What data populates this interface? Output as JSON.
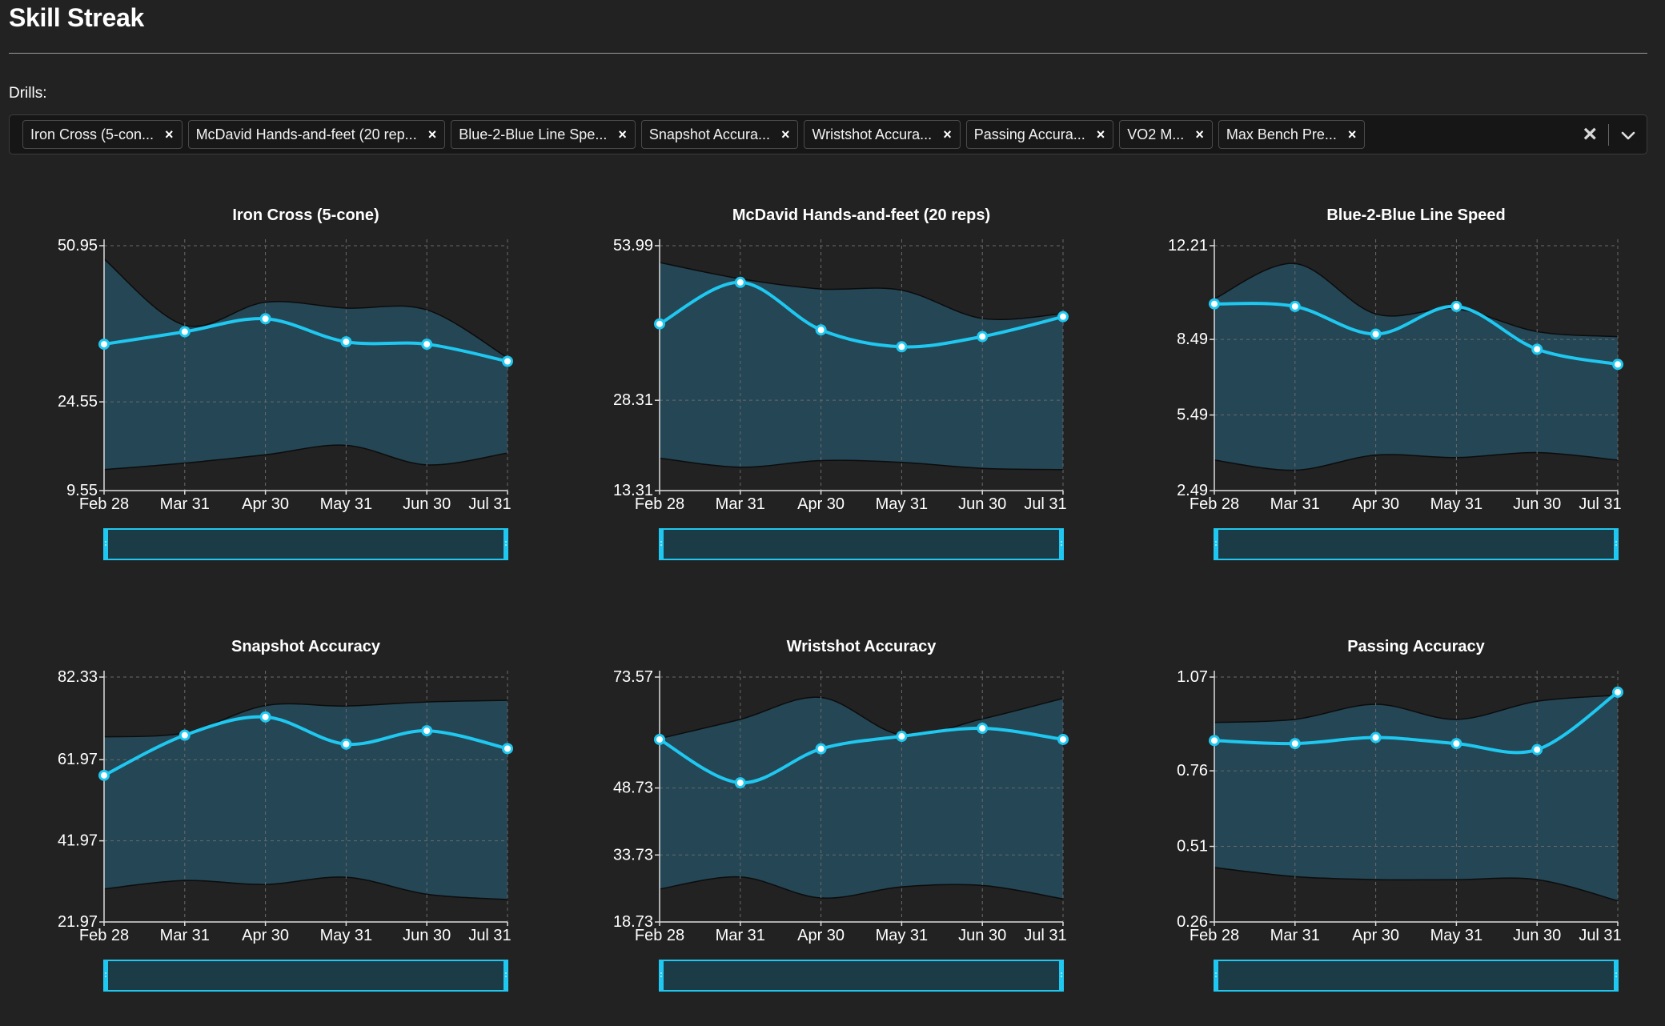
{
  "app": {
    "title": "Skill Streak"
  },
  "filter": {
    "label": "Drills:",
    "chips": [
      "Iron Cross (5-con...",
      "McDavid Hands-and-feet (20 rep...",
      "Blue-2-Blue Line Spe...",
      "Snapshot Accura...",
      "Wristshot Accura...",
      "Passing Accura...",
      "VO2 M...",
      "Max Bench Pre..."
    ],
    "chip_remove_glyph": "×",
    "clear_glyph": "×"
  },
  "colors": {
    "accent": "#1fc8f0",
    "band_fill": "#244655",
    "band_edge": "#0c0c0c",
    "grid": "#6a6a6a",
    "slider_fill": "#1b3b47"
  },
  "chart_data": [
    {
      "type": "line",
      "title": "Iron Cross (5-cone)",
      "categories": [
        "Feb 28",
        "Mar 31",
        "Apr 30",
        "May 31",
        "Jun 30",
        "Jul 31"
      ],
      "yticks": [
        "50.95",
        "24.55",
        "9.55"
      ],
      "ylim": [
        9.55,
        50.95
      ],
      "values": [
        34.3,
        36.4,
        38.6,
        34.7,
        34.3,
        31.4
      ],
      "band_upper": [
        48.7,
        37.5,
        41.4,
        40.4,
        40.1,
        32.0
      ],
      "band_lower": [
        13.1,
        14.2,
        15.6,
        17.2,
        13.9,
        15.9
      ]
    },
    {
      "type": "line",
      "title": "McDavid Hands-and-feet (20 reps)",
      "categories": [
        "Feb 28",
        "Mar 31",
        "Apr 30",
        "May 31",
        "Jun 30",
        "Jul 31"
      ],
      "yticks": [
        "53.99",
        "28.31",
        "13.31"
      ],
      "ylim": [
        13.31,
        53.99
      ],
      "values": [
        41.0,
        47.9,
        40.0,
        37.2,
        38.9,
        42.2
      ],
      "band_upper": [
        51.2,
        48.5,
        46.8,
        46.6,
        41.9,
        42.7
      ],
      "band_lower": [
        18.7,
        17.2,
        18.3,
        18.0,
        17.0,
        16.8
      ]
    },
    {
      "type": "line",
      "title": "Blue-2-Blue Line Speed",
      "categories": [
        "Feb 28",
        "Mar 31",
        "Apr 30",
        "May 31",
        "Jun 30",
        "Jul 31"
      ],
      "yticks": [
        "12.21",
        "8.49",
        "5.49",
        "2.49"
      ],
      "ylim": [
        2.49,
        12.21
      ],
      "values": [
        9.9,
        9.8,
        8.7,
        9.8,
        8.1,
        7.5
      ],
      "band_upper": [
        10.1,
        11.5,
        9.5,
        9.7,
        8.8,
        8.6
      ],
      "band_lower": [
        3.7,
        3.3,
        3.9,
        3.8,
        4.0,
        3.7
      ]
    },
    {
      "type": "line",
      "title": "Snapshot Accuracy",
      "categories": [
        "Feb 28",
        "Mar 31",
        "Apr 30",
        "May 31",
        "Jun 30",
        "Jul 31"
      ],
      "yticks": [
        "82.33",
        "61.97",
        "41.97",
        "21.97"
      ],
      "ylim": [
        21.97,
        82.33
      ],
      "values": [
        58.1,
        68.0,
        72.5,
        65.8,
        69.1,
        64.7
      ],
      "band_upper": [
        67.6,
        68.6,
        75.3,
        75.2,
        76.2,
        76.6
      ],
      "band_lower": [
        30.1,
        32.2,
        31.2,
        33.0,
        28.8,
        27.5
      ]
    },
    {
      "type": "line",
      "title": "Wristshot Accuracy",
      "categories": [
        "Feb 28",
        "Mar 31",
        "Apr 30",
        "May 31",
        "Jun 30",
        "Jul 31"
      ],
      "yticks": [
        "73.57",
        "48.73",
        "33.73",
        "18.73"
      ],
      "ylim": [
        18.73,
        73.57
      ],
      "values": [
        59.6,
        49.9,
        57.5,
        60.3,
        62.1,
        59.6
      ],
      "band_upper": [
        59.8,
        64.1,
        69.0,
        60.6,
        64.2,
        68.8
      ],
      "band_lower": [
        26.1,
        28.8,
        24.1,
        26.6,
        26.9,
        23.9
      ]
    },
    {
      "type": "line",
      "title": "Passing Accuracy",
      "categories": [
        "Feb 28",
        "Mar 31",
        "Apr 30",
        "May 31",
        "Jun 30",
        "Jul 31"
      ],
      "yticks": [
        "1.07",
        "0.76",
        "0.51",
        "0.26"
      ],
      "ylim": [
        0.26,
        1.07
      ],
      "values": [
        0.86,
        0.85,
        0.87,
        0.85,
        0.83,
        1.02
      ],
      "band_upper": [
        0.92,
        0.93,
        0.98,
        0.93,
        0.99,
        1.01
      ],
      "band_lower": [
        0.44,
        0.41,
        0.4,
        0.4,
        0.4,
        0.33
      ]
    }
  ]
}
